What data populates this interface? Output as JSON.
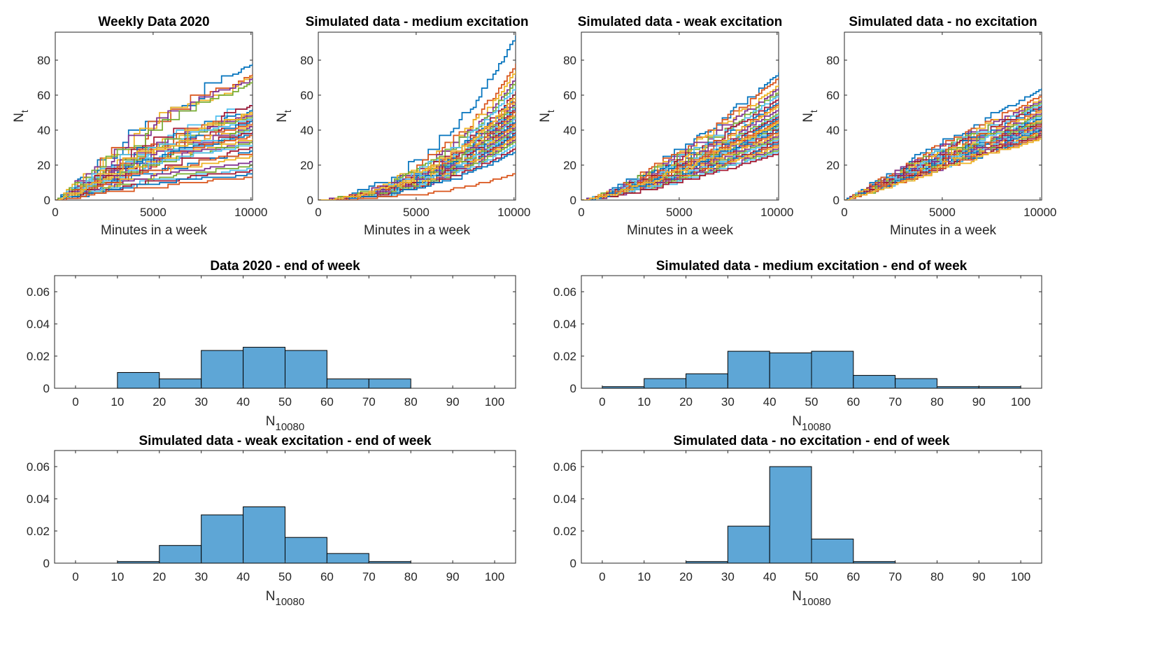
{
  "chart_data": [
    {
      "type": "line",
      "title": "Weekly Data 2020",
      "xlabel": "Minutes in a week",
      "ylabel": "N",
      "ylabel_sub": "t",
      "xlim": [
        0,
        10080
      ],
      "ylim": [
        0,
        96
      ],
      "xticks": [
        0,
        5000,
        10000
      ],
      "yticks": [
        0,
        20,
        40,
        60,
        80
      ],
      "n_series": 38,
      "end_values": [
        78,
        72,
        71,
        70,
        68,
        55,
        54,
        52,
        50,
        50,
        49,
        48,
        47,
        46,
        45,
        44,
        43,
        42,
        41,
        40,
        39,
        38,
        37,
        35,
        34,
        33,
        32,
        30,
        28,
        27,
        25,
        22,
        20,
        18,
        17,
        15,
        13,
        50
      ]
    },
    {
      "type": "line",
      "title": "Simulated data - medium excitation",
      "xlabel": "Minutes in a week",
      "ylabel": "N",
      "ylabel_sub": "t",
      "xlim": [
        0,
        10080
      ],
      "ylim": [
        0,
        96
      ],
      "xticks": [
        0,
        5000,
        10000
      ],
      "yticks": [
        0,
        20,
        40,
        60,
        80
      ],
      "n_series": 38,
      "end_values": [
        94,
        78,
        74,
        70,
        68,
        65,
        62,
        60,
        58,
        57,
        56,
        55,
        54,
        53,
        52,
        51,
        50,
        49,
        48,
        47,
        46,
        45,
        44,
        43,
        42,
        41,
        40,
        39,
        38,
        37,
        36,
        35,
        34,
        32,
        30,
        28,
        15,
        60
      ]
    },
    {
      "type": "line",
      "title": "Simulated data - weak excitation",
      "xlabel": "Minutes in a week",
      "ylabel": "N",
      "ylabel_sub": "t",
      "xlim": [
        0,
        10080
      ],
      "ylim": [
        0,
        96
      ],
      "xticks": [
        0,
        5000,
        10000
      ],
      "yticks": [
        0,
        20,
        40,
        60,
        80
      ],
      "n_series": 38,
      "end_values": [
        73,
        70,
        66,
        64,
        62,
        60,
        58,
        56,
        55,
        54,
        52,
        50,
        49,
        48,
        47,
        46,
        45,
        44,
        43,
        42,
        41,
        40,
        39,
        38,
        37,
        36,
        35,
        34,
        33,
        32,
        31,
        30,
        29,
        28,
        27,
        44,
        46,
        45
      ]
    },
    {
      "type": "line",
      "title": "Simulated data - no excitation",
      "xlabel": "Minutes in a week",
      "ylabel": "N",
      "ylabel_sub": "t",
      "xlim": [
        0,
        10080
      ],
      "ylim": [
        0,
        96
      ],
      "xticks": [
        0,
        5000,
        10000
      ],
      "yticks": [
        0,
        20,
        40,
        60,
        80
      ],
      "n_series": 38,
      "end_values": [
        64,
        60,
        58,
        57,
        56,
        55,
        54,
        53,
        52,
        51,
        50,
        49,
        48,
        47,
        47,
        46,
        46,
        45,
        45,
        44,
        44,
        43,
        43,
        42,
        42,
        41,
        41,
        40,
        40,
        39,
        39,
        38,
        38,
        37,
        37,
        36,
        36,
        35
      ]
    },
    {
      "type": "bar",
      "title": "Data 2020 - end of week",
      "xlabel": "N",
      "xlabel_sub": "10080",
      "bin_edges": [
        10,
        20,
        30,
        40,
        50,
        60,
        70,
        80
      ],
      "values": [
        0.0098,
        0.0058,
        0.0235,
        0.0255,
        0.0235,
        0.0058,
        0.0058
      ],
      "xlim": [
        -5,
        105
      ],
      "ylim": [
        0,
        0.07
      ],
      "xticks": [
        0,
        10,
        20,
        30,
        40,
        50,
        60,
        70,
        80,
        90,
        100
      ],
      "yticks": [
        0,
        0.02,
        0.04,
        0.06
      ],
      "ytick_labels": [
        "0",
        "0.02",
        "0.04",
        "0.06"
      ]
    },
    {
      "type": "bar",
      "title": "Simulated data - medium excitation - end of week",
      "xlabel": "N",
      "xlabel_sub": "10080",
      "bin_edges": [
        0,
        10,
        20,
        30,
        40,
        50,
        60,
        70,
        80,
        90,
        100
      ],
      "values": [
        0.001,
        0.006,
        0.009,
        0.023,
        0.022,
        0.023,
        0.008,
        0.006,
        0.001,
        0.001
      ],
      "xlim": [
        -5,
        105
      ],
      "ylim": [
        0,
        0.07
      ],
      "xticks": [
        0,
        10,
        20,
        30,
        40,
        50,
        60,
        70,
        80,
        90,
        100
      ],
      "yticks": [
        0,
        0.02,
        0.04,
        0.06
      ],
      "ytick_labels": [
        "0",
        "0.02",
        "0.04",
        "0.06"
      ]
    },
    {
      "type": "bar",
      "title": "Simulated data - weak excitation - end of week",
      "xlabel": "N",
      "xlabel_sub": "10080",
      "bin_edges": [
        10,
        20,
        30,
        40,
        50,
        60,
        70,
        80
      ],
      "values": [
        0.001,
        0.011,
        0.03,
        0.035,
        0.016,
        0.006,
        0.001
      ],
      "xlim": [
        -5,
        105
      ],
      "ylim": [
        0,
        0.07
      ],
      "xticks": [
        0,
        10,
        20,
        30,
        40,
        50,
        60,
        70,
        80,
        90,
        100
      ],
      "yticks": [
        0,
        0.02,
        0.04,
        0.06
      ],
      "ytick_labels": [
        "0",
        "0.02",
        "0.04",
        "0.06"
      ]
    },
    {
      "type": "bar",
      "title": "Simulated data - no excitation - end of week",
      "xlabel": "N",
      "xlabel_sub": "10080",
      "bin_edges": [
        20,
        30,
        40,
        50,
        60,
        70
      ],
      "values": [
        0.001,
        0.023,
        0.06,
        0.015,
        0.001
      ],
      "xlim": [
        -5,
        105
      ],
      "ylim": [
        0,
        0.07
      ],
      "xticks": [
        0,
        10,
        20,
        30,
        40,
        50,
        60,
        70,
        80,
        90,
        100
      ],
      "yticks": [
        0,
        0.02,
        0.04,
        0.06
      ],
      "ytick_labels": [
        "0",
        "0.02",
        "0.04",
        "0.06"
      ]
    }
  ],
  "colors": {
    "bar_fill": "#5ea6d6",
    "line_palette": [
      "#0072BD",
      "#D95319",
      "#EDB120",
      "#7E2F8E",
      "#77AC30",
      "#4DBEEE",
      "#A2142F"
    ]
  }
}
